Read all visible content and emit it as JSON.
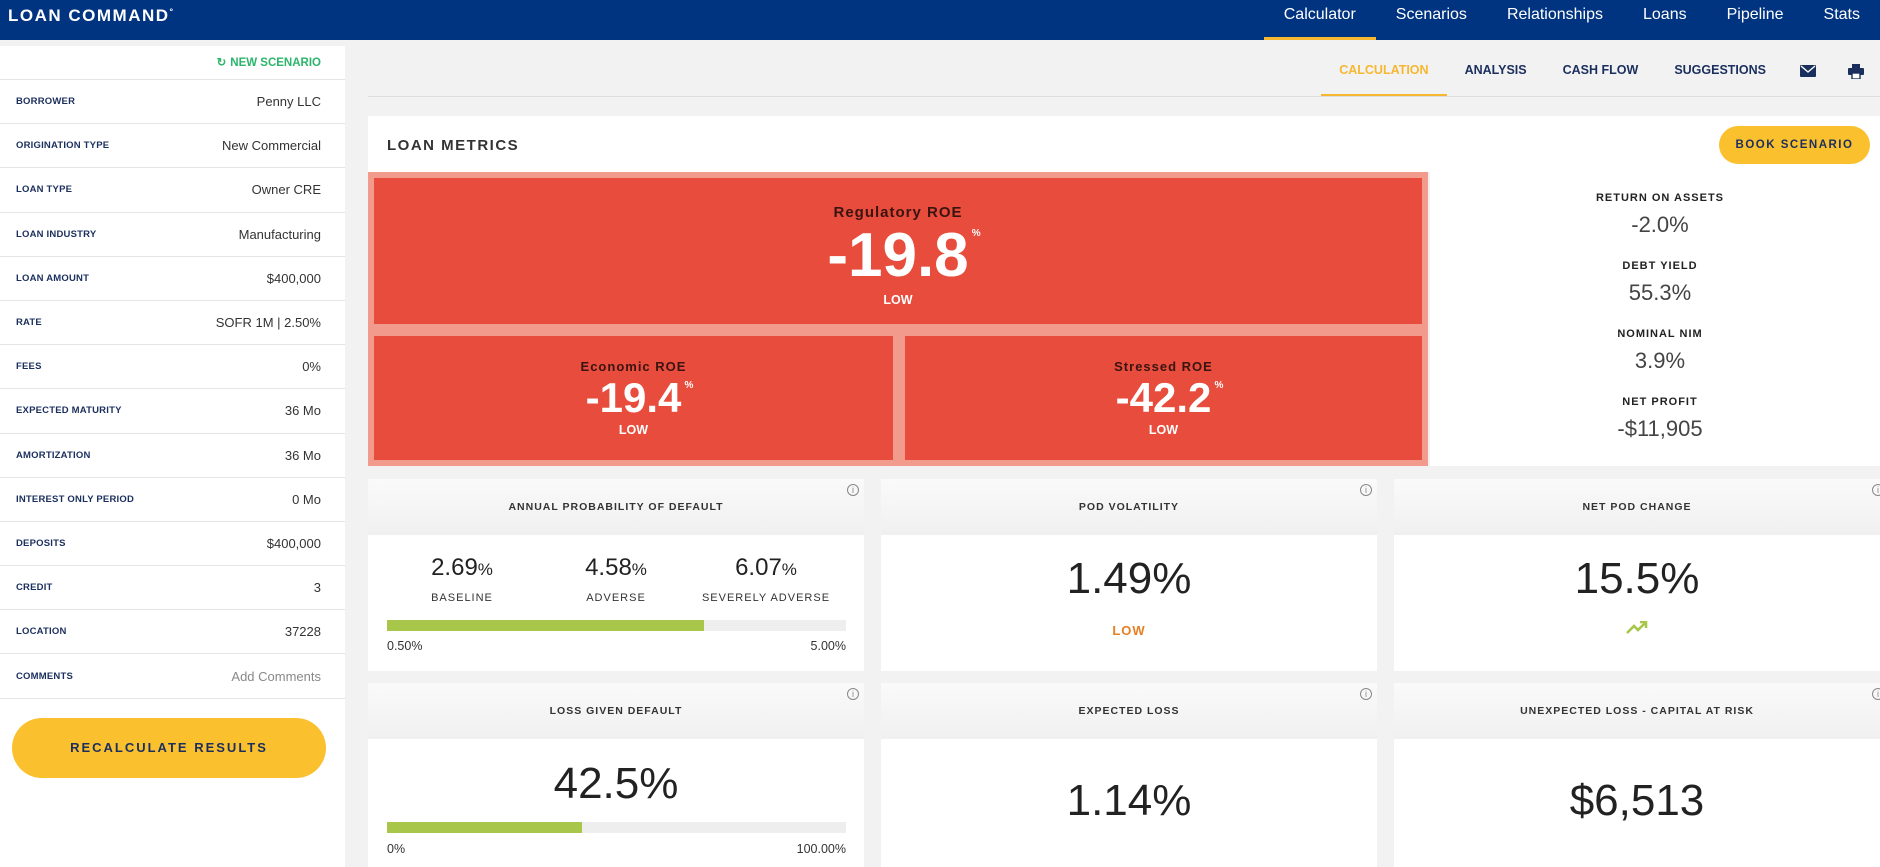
{
  "app": {
    "title": "LOAN COMMAND",
    "mark": "°"
  },
  "topnav": {
    "items": [
      "Calculator",
      "Scenarios",
      "Relationships",
      "Loans",
      "Pipeline",
      "Stats"
    ],
    "active": "Calculator"
  },
  "sidebar": {
    "new_scenario": "NEW SCENARIO",
    "fields": [
      {
        "label": "BORROWER",
        "value": "Penny LLC"
      },
      {
        "label": "ORIGINATION TYPE",
        "value": "New Commercial"
      },
      {
        "label": "LOAN TYPE",
        "value": "Owner CRE"
      },
      {
        "label": "LOAN INDUSTRY",
        "value": "Manufacturing"
      },
      {
        "label": "LOAN AMOUNT",
        "value": "$400,000"
      },
      {
        "label": "RATE",
        "value": "SOFR 1M | 2.50%"
      },
      {
        "label": "FEES",
        "value": "0%"
      },
      {
        "label": "EXPECTED MATURITY",
        "value": "36 Mo"
      },
      {
        "label": "AMORTIZATION",
        "value": "36 Mo"
      },
      {
        "label": "INTEREST ONLY PERIOD",
        "value": "0 Mo"
      },
      {
        "label": "DEPOSITS",
        "value": "$400,000"
      },
      {
        "label": "CREDIT",
        "value": "3"
      },
      {
        "label": "LOCATION",
        "value": "37228"
      },
      {
        "label": "COMMENTS",
        "value": "Add Comments"
      }
    ],
    "recalculate_label": "RECALCULATE RESULTS"
  },
  "subnav": {
    "tabs": [
      "CALCULATION",
      "ANALYSIS",
      "CASH FLOW",
      "SUGGESTIONS"
    ],
    "active": "CALCULATION",
    "icons": [
      "mail-icon",
      "print-icon"
    ]
  },
  "metrics": {
    "title": "LOAN METRICS",
    "book_label": "BOOK SCENARIO",
    "regulatory": {
      "label": "Regulatory ROE",
      "value": "-19.8",
      "unit": "%",
      "rating": "LOW"
    },
    "economic": {
      "label": "Economic ROE",
      "value": "-19.4",
      "unit": "%",
      "rating": "LOW"
    },
    "stressed": {
      "label": "Stressed ROE",
      "value": "-42.2",
      "unit": "%",
      "rating": "LOW"
    },
    "side": [
      {
        "label": "RETURN ON ASSETS",
        "value": "-2.0%"
      },
      {
        "label": "DEBT YIELD",
        "value": "55.3%"
      },
      {
        "label": "NOMINAL NIM",
        "value": "3.9%"
      },
      {
        "label": "NET PROFIT",
        "value": "-$11,905"
      }
    ],
    "accent_color": "#e74c3c"
  },
  "cards": {
    "pod": {
      "title": "ANNUAL PROBABILITY OF DEFAULT",
      "items": [
        {
          "value": "2.69",
          "unit": "%",
          "label": "BASELINE"
        },
        {
          "value": "4.58",
          "unit": "%",
          "label": "ADVERSE"
        },
        {
          "value": "6.07",
          "unit": "%",
          "label": "SEVERELY ADVERSE"
        }
      ],
      "bar_fill_fraction": 0.69,
      "min": "0.50%",
      "max": "5.00%"
    },
    "pod_volatility": {
      "title": "POD VOLATILITY",
      "value": "1.49%",
      "rating": "LOW"
    },
    "net_pod_change": {
      "title": "NET POD CHANGE",
      "value": "15.5%",
      "trend_icon": "trending-up-icon"
    },
    "lgd": {
      "title": "LOSS GIVEN DEFAULT",
      "value": "42.5%",
      "bar_fill_fraction": 0.425,
      "min": "0%",
      "max": "100.00%"
    },
    "expected_loss": {
      "title": "EXPECTED LOSS",
      "value": "1.14%"
    },
    "unexpected_loss": {
      "title": "UNEXPECTED LOSS - CAPITAL AT RISK",
      "value": "$6,513"
    }
  }
}
